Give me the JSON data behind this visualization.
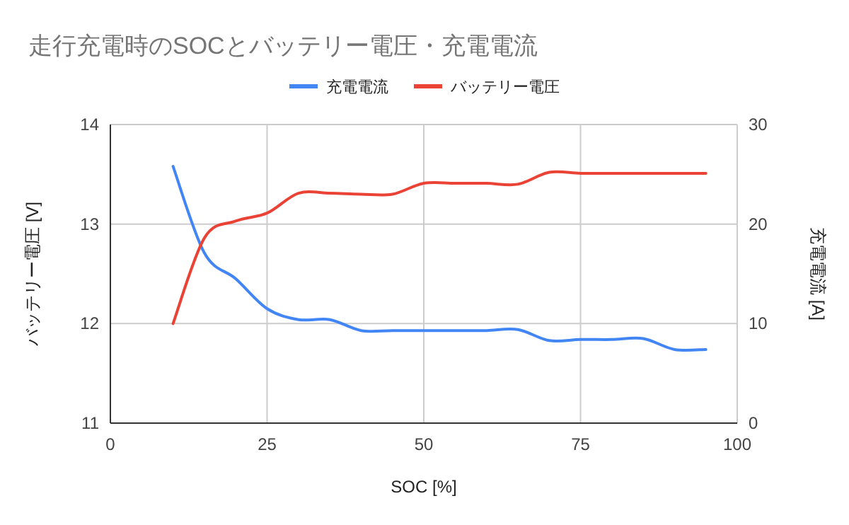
{
  "chart_data": {
    "type": "line",
    "title": "走行充電時のSOCとバッテリー電圧・充電電流",
    "xlabel": "SOC [%]",
    "ylabel": "バッテリー電圧 [V]",
    "y2label": "充電電流 [A]",
    "x": [
      10,
      15,
      20,
      25,
      30,
      35,
      40,
      45,
      50,
      55,
      60,
      65,
      70,
      75,
      80,
      85,
      90,
      95
    ],
    "series": [
      {
        "name": "充電電流",
        "color": "#4285f4",
        "axis": "y2",
        "values": [
          25.8,
          17.1,
          14.5,
          11.5,
          10.4,
          10.4,
          9.3,
          9.3,
          9.3,
          9.3,
          9.3,
          9.4,
          8.3,
          8.4,
          8.4,
          8.5,
          7.4,
          7.4
        ]
      },
      {
        "name": "バッテリー電圧",
        "color": "#ea4335",
        "values": [
          12.0,
          12.86,
          13.03,
          13.11,
          13.31,
          13.31,
          13.3,
          13.3,
          13.41,
          13.41,
          13.41,
          13.4,
          13.52,
          13.51,
          13.51,
          13.51,
          13.51,
          13.51
        ]
      }
    ],
    "xlim": [
      0,
      100
    ],
    "xticks": [
      0,
      25,
      50,
      75,
      100
    ],
    "ylim": [
      11,
      14
    ],
    "yticks": [
      11,
      12,
      13,
      14
    ],
    "y2lim": [
      0,
      30
    ],
    "y2ticks": [
      0,
      10,
      20,
      30
    ],
    "grid": true,
    "legend": "top"
  }
}
